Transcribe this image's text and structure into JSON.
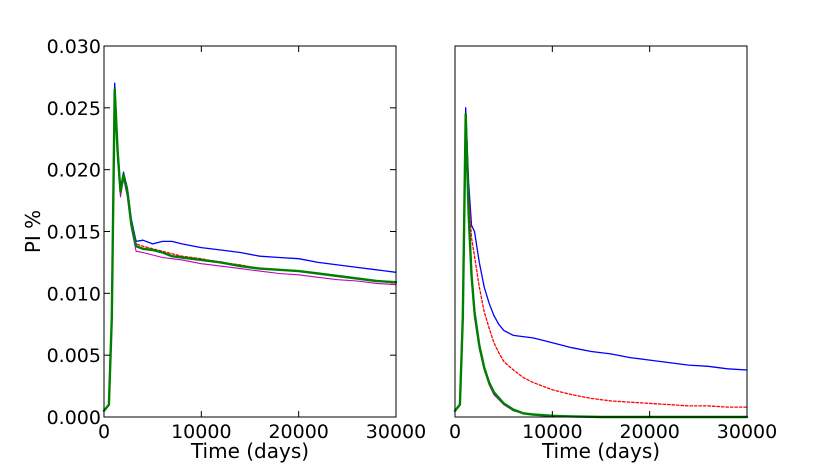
{
  "chart_data": [
    {
      "type": "line",
      "title": "",
      "xlabel": "Time (days)",
      "ylabel": "PI %",
      "xlim": [
        0,
        30000
      ],
      "ylim": [
        0.0,
        0.03
      ],
      "xticks": [
        0,
        10000,
        20000,
        30000
      ],
      "xtick_labels": [
        "0",
        "10000",
        "20000",
        "30000"
      ],
      "yticks": [
        0.0,
        0.005,
        0.01,
        0.015,
        0.02,
        0.025,
        0.03
      ],
      "ytick_labels": [
        "0.000",
        "0.005",
        "0.010",
        "0.015",
        "0.020",
        "0.025",
        "0.030"
      ],
      "grid": false,
      "series": [
        {
          "color": "#0000ff",
          "style": "solid",
          "width": 1.3,
          "points": [
            [
              0,
              0.0005
            ],
            [
              500,
              0.001
            ],
            [
              800,
              0.008
            ],
            [
              1100,
              0.027
            ],
            [
              1400,
              0.022
            ],
            [
              1700,
              0.0185
            ],
            [
              2000,
              0.0198
            ],
            [
              2400,
              0.0185
            ],
            [
              2800,
              0.016
            ],
            [
              3300,
              0.0142
            ],
            [
              4000,
              0.0143
            ],
            [
              5000,
              0.014
            ],
            [
              6000,
              0.0142
            ],
            [
              7000,
              0.0142
            ],
            [
              8000,
              0.014
            ],
            [
              10000,
              0.0137
            ],
            [
              12000,
              0.0135
            ],
            [
              14000,
              0.0133
            ],
            [
              16000,
              0.013
            ],
            [
              18000,
              0.0129
            ],
            [
              20000,
              0.0128
            ],
            [
              22000,
              0.0125
            ],
            [
              24000,
              0.0123
            ],
            [
              26000,
              0.0121
            ],
            [
              28000,
              0.0119
            ],
            [
              30000,
              0.0117
            ]
          ]
        },
        {
          "color": "#ff0000",
          "style": "dashed",
          "width": 1.3,
          "points": [
            [
              0,
              0.0005
            ],
            [
              500,
              0.001
            ],
            [
              800,
              0.008
            ],
            [
              1100,
              0.0265
            ],
            [
              1400,
              0.0215
            ],
            [
              1700,
              0.0183
            ],
            [
              2000,
              0.0196
            ],
            [
              2400,
              0.0183
            ],
            [
              2800,
              0.0158
            ],
            [
              3300,
              0.014
            ],
            [
              4000,
              0.0138
            ],
            [
              5000,
              0.0136
            ],
            [
              6000,
              0.0134
            ],
            [
              7000,
              0.0132
            ],
            [
              8000,
              0.013
            ],
            [
              10000,
              0.0128
            ],
            [
              12000,
              0.0125
            ],
            [
              14000,
              0.0123
            ],
            [
              16000,
              0.012
            ],
            [
              18000,
              0.0119
            ],
            [
              20000,
              0.0118
            ],
            [
              22000,
              0.0116
            ],
            [
              24000,
              0.0114
            ],
            [
              26000,
              0.0112
            ],
            [
              28000,
              0.011
            ],
            [
              30000,
              0.0108
            ]
          ]
        },
        {
          "color": "#bf00bf",
          "style": "solid",
          "width": 1.1,
          "points": [
            [
              0,
              0.0005
            ],
            [
              500,
              0.001
            ],
            [
              800,
              0.008
            ],
            [
              1100,
              0.0262
            ],
            [
              1400,
              0.021
            ],
            [
              1700,
              0.0178
            ],
            [
              2000,
              0.0193
            ],
            [
              2400,
              0.0178
            ],
            [
              2800,
              0.0153
            ],
            [
              3300,
              0.0134
            ],
            [
              4000,
              0.0133
            ],
            [
              5000,
              0.0131
            ],
            [
              6000,
              0.0129
            ],
            [
              7000,
              0.0128
            ],
            [
              8000,
              0.0127
            ],
            [
              10000,
              0.0124
            ],
            [
              12000,
              0.0122
            ],
            [
              14000,
              0.012
            ],
            [
              16000,
              0.0118
            ],
            [
              18000,
              0.0116
            ],
            [
              20000,
              0.0115
            ],
            [
              22000,
              0.0113
            ],
            [
              24000,
              0.0111
            ],
            [
              26000,
              0.011
            ],
            [
              28000,
              0.0108
            ],
            [
              30000,
              0.0107
            ]
          ]
        },
        {
          "color": "#008000",
          "style": "solid",
          "width": 2.4,
          "points": [
            [
              0,
              0.0005
            ],
            [
              500,
              0.001
            ],
            [
              800,
              0.008
            ],
            [
              1100,
              0.0265
            ],
            [
              1400,
              0.0215
            ],
            [
              1700,
              0.0182
            ],
            [
              2000,
              0.0196
            ],
            [
              2400,
              0.0182
            ],
            [
              2800,
              0.0156
            ],
            [
              3300,
              0.0138
            ],
            [
              4000,
              0.0136
            ],
            [
              5000,
              0.0135
            ],
            [
              6000,
              0.0133
            ],
            [
              7000,
              0.013
            ],
            [
              8000,
              0.0129
            ],
            [
              10000,
              0.0127
            ],
            [
              12000,
              0.0125
            ],
            [
              14000,
              0.0122
            ],
            [
              16000,
              0.012
            ],
            [
              18000,
              0.0119
            ],
            [
              20000,
              0.0118
            ],
            [
              22000,
              0.0116
            ],
            [
              24000,
              0.0114
            ],
            [
              26000,
              0.0112
            ],
            [
              28000,
              0.011
            ],
            [
              30000,
              0.0109
            ]
          ]
        }
      ]
    },
    {
      "type": "line",
      "title": "",
      "xlabel": "Time (days)",
      "ylabel": "",
      "xlim": [
        0,
        30000
      ],
      "ylim": [
        0.0,
        0.03
      ],
      "xticks": [
        0,
        10000,
        20000,
        30000
      ],
      "xtick_labels": [
        "0",
        "10000",
        "20000",
        "30000"
      ],
      "yticks": [],
      "ytick_labels": [],
      "grid": false,
      "series": [
        {
          "color": "#0000ff",
          "style": "solid",
          "width": 1.3,
          "points": [
            [
              0,
              0.0005
            ],
            [
              500,
              0.001
            ],
            [
              800,
              0.008
            ],
            [
              1100,
              0.025
            ],
            [
              1400,
              0.019
            ],
            [
              1700,
              0.0155
            ],
            [
              2000,
              0.015
            ],
            [
              2500,
              0.0125
            ],
            [
              3000,
              0.0105
            ],
            [
              3500,
              0.0092
            ],
            [
              4000,
              0.0082
            ],
            [
              4500,
              0.0075
            ],
            [
              5000,
              0.007
            ],
            [
              6000,
              0.0066
            ],
            [
              7000,
              0.0065
            ],
            [
              8000,
              0.0064
            ],
            [
              9000,
              0.0062
            ],
            [
              10000,
              0.006
            ],
            [
              12000,
              0.0056
            ],
            [
              14000,
              0.0053
            ],
            [
              16000,
              0.0051
            ],
            [
              18000,
              0.0048
            ],
            [
              20000,
              0.0046
            ],
            [
              22000,
              0.0044
            ],
            [
              24000,
              0.0042
            ],
            [
              26000,
              0.0041
            ],
            [
              28000,
              0.0039
            ],
            [
              30000,
              0.0038
            ]
          ]
        },
        {
          "color": "#ff0000",
          "style": "dashed",
          "width": 1.3,
          "points": [
            [
              0,
              0.0005
            ],
            [
              500,
              0.001
            ],
            [
              800,
              0.008
            ],
            [
              1100,
              0.0245
            ],
            [
              1400,
              0.018
            ],
            [
              1700,
              0.0145
            ],
            [
              2000,
              0.013
            ],
            [
              2500,
              0.0105
            ],
            [
              3000,
              0.0085
            ],
            [
              3500,
              0.0072
            ],
            [
              4000,
              0.006
            ],
            [
              4500,
              0.0052
            ],
            [
              5000,
              0.0045
            ],
            [
              6000,
              0.0038
            ],
            [
              7000,
              0.0032
            ],
            [
              8000,
              0.0028
            ],
            [
              9000,
              0.0025
            ],
            [
              10000,
              0.0022
            ],
            [
              12000,
              0.0018
            ],
            [
              14000,
              0.0015
            ],
            [
              16000,
              0.0013
            ],
            [
              18000,
              0.0012
            ],
            [
              20000,
              0.0011
            ],
            [
              22000,
              0.001
            ],
            [
              24000,
              0.0009
            ],
            [
              26000,
              0.0009
            ],
            [
              28000,
              0.0008
            ],
            [
              30000,
              0.0008
            ]
          ]
        },
        {
          "color": "#bf00bf",
          "style": "solid",
          "width": 1.1,
          "points": [
            [
              0,
              0.0005
            ],
            [
              500,
              0.001
            ],
            [
              800,
              0.008
            ],
            [
              1100,
              0.024
            ],
            [
              1400,
              0.016
            ],
            [
              1700,
              0.011
            ],
            [
              2000,
              0.008
            ],
            [
              2500,
              0.0055
            ],
            [
              3000,
              0.0038
            ],
            [
              3500,
              0.0026
            ],
            [
              4000,
              0.0018
            ],
            [
              5000,
              0.001
            ],
            [
              6000,
              0.0005
            ],
            [
              7000,
              0.0003
            ],
            [
              8000,
              0.0002
            ],
            [
              10000,
              0.0001
            ],
            [
              12000,
              5e-05
            ],
            [
              15000,
              0.0
            ],
            [
              20000,
              0.0
            ],
            [
              25000,
              0.0
            ],
            [
              30000,
              0.0
            ]
          ]
        },
        {
          "color": "#008000",
          "style": "solid",
          "width": 2.4,
          "points": [
            [
              0,
              0.0005
            ],
            [
              500,
              0.001
            ],
            [
              800,
              0.008
            ],
            [
              1100,
              0.0245
            ],
            [
              1400,
              0.0165
            ],
            [
              1700,
              0.0115
            ],
            [
              2000,
              0.0085
            ],
            [
              2500,
              0.0058
            ],
            [
              3000,
              0.004
            ],
            [
              3500,
              0.0028
            ],
            [
              4000,
              0.002
            ],
            [
              5000,
              0.0011
            ],
            [
              6000,
              0.0006
            ],
            [
              7000,
              0.0003
            ],
            [
              8000,
              0.0002
            ],
            [
              10000,
              0.0001
            ],
            [
              12000,
              5e-05
            ],
            [
              15000,
              0.0
            ],
            [
              20000,
              0.0
            ],
            [
              25000,
              0.0
            ],
            [
              30000,
              0.0
            ]
          ]
        }
      ]
    }
  ]
}
